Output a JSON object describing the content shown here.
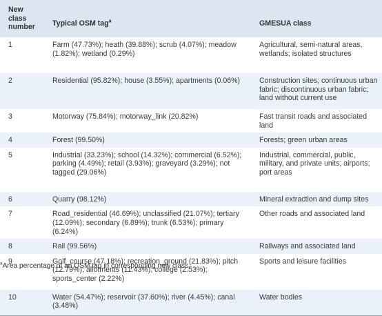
{
  "table": {
    "headers": {
      "col1_line1": "New class",
      "col1_line2": "number",
      "col2": "Typical OSM tag",
      "col2_sup": "a",
      "col3": "GMESUA class"
    },
    "rows": [
      {
        "number": "1",
        "tags": "Farm (47.73%); heath (39.88%); scrub (4.07%); meadow (1.82%); wetland (0.29%)",
        "gmesua": "Agricultural, semi-natural areas, wetlands; isolated structures"
      },
      {
        "number": "2",
        "tags": "Residential (95.82%); house (3.55%); apartments (0.06%)",
        "gmesua": "Construction sites; continuous urban fabric; discontinuous urban fabric; land without current use"
      },
      {
        "number": "3",
        "tags": "Motorway (75.84%); motorway_link (20.82%)",
        "gmesua": "Fast transit roads and associated land"
      },
      {
        "number": "4",
        "tags": "Forest (99.50%)",
        "gmesua": "Forests; green urban areas"
      },
      {
        "number": "5",
        "tags": "Industrial (33.23%); school (14.32%); commercial (6.52%); parking (4.49%); retail (3.93%); graveyard (3.29%); not tagged (29.06%)",
        "gmesua": "Industrial, commercial, public, military, and private units; airports; port areas"
      },
      {
        "number": "6",
        "tags": "Quarry (98.12%)",
        "gmesua": "Mineral extraction and dump sites"
      },
      {
        "number": "7",
        "tags": "Road_residential (46.69%); unclassified (21.07%); tertiary (12.09%); secondary (6.89%); trunk (6.53%); primary (6.24%)",
        "gmesua": "Other roads and associated land"
      },
      {
        "number": "8",
        "tags": "Rail (99.56%)",
        "gmesua": "Railways and associated land"
      },
      {
        "number": "9",
        "tags": "Golf_course (47.18%); recreation_ground (21.83%); pitch (12.79%); allotments (11.43%); college (2.53%); sports_center (2.22%)",
        "gmesua": "Sports and leisure facilities"
      },
      {
        "number": "10",
        "tags": "Water (54.47%); reservoir (37.60%); river (4.45%); canal (3.48%)",
        "gmesua": "Water bodies"
      }
    ]
  },
  "footnote": {
    "marker": "a",
    "text": "Area percentage of an OSM tag in corresponding new class."
  }
}
